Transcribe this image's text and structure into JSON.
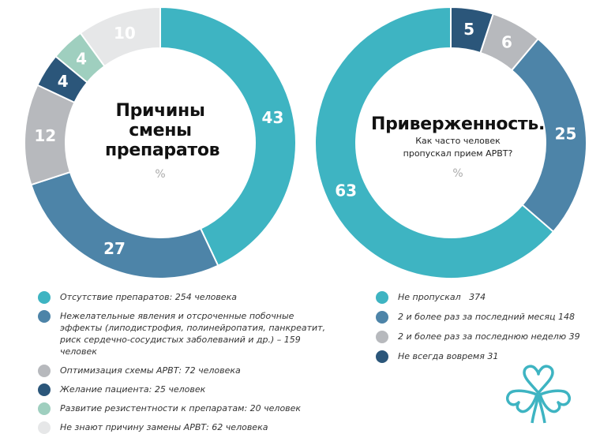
{
  "charts": {
    "left": {
      "title_lines": [
        "Причины",
        "смены",
        "препаратов"
      ],
      "unit": "%"
    },
    "right": {
      "title_lines": [
        "Приверженность."
      ],
      "subtitle_lines": [
        "Как часто человек",
        "пропускал прием АРВТ?"
      ],
      "unit": "%"
    }
  },
  "chart_data": [
    {
      "type": "pie",
      "title": "Причины смены препаратов",
      "unit": "%",
      "slices": [
        {
          "label": "Отсутствие препаратов: 254 человека",
          "value": 43,
          "color": "#3eb4c2"
        },
        {
          "label": "Нежелательные явления и отсроченные побочные эффекты (липодистрофия, полинейропатия, панкреатит, риск сердечно-сосудистых заболеваний и др.) – 159 человек",
          "value": 27,
          "color": "#4d84a8"
        },
        {
          "label": "Оптимизация схемы АРВТ: 72 человека",
          "value": 12,
          "color": "#b7b9bd"
        },
        {
          "label": "Желание пациента: 25 человек",
          "value": 4,
          "color": "#2b567a"
        },
        {
          "label": "Развитие резистентности к препаратам: 20 человек",
          "value": 4,
          "color": "#9fcfbf"
        },
        {
          "label": "Не знают причину замены АРВТ: 62 человека",
          "value": 10,
          "color": "#e6e7e8"
        }
      ]
    },
    {
      "type": "pie",
      "title": "Приверженность. Как часто человек пропускал прием АРВТ?",
      "unit": "%",
      "slices": [
        {
          "label": "Не пропускал   374",
          "value": 63,
          "color": "#3eb4c2"
        },
        {
          "label": "2 и более раз за последний месяц 148",
          "value": 25,
          "color": "#4d84a8"
        },
        {
          "label": "2 и более раз за последнюю неделю 39",
          "value": 6,
          "color": "#b7b9bd"
        },
        {
          "label": "Не всегда вовремя 31",
          "value": 5,
          "color": "#2b567a"
        }
      ]
    }
  ]
}
